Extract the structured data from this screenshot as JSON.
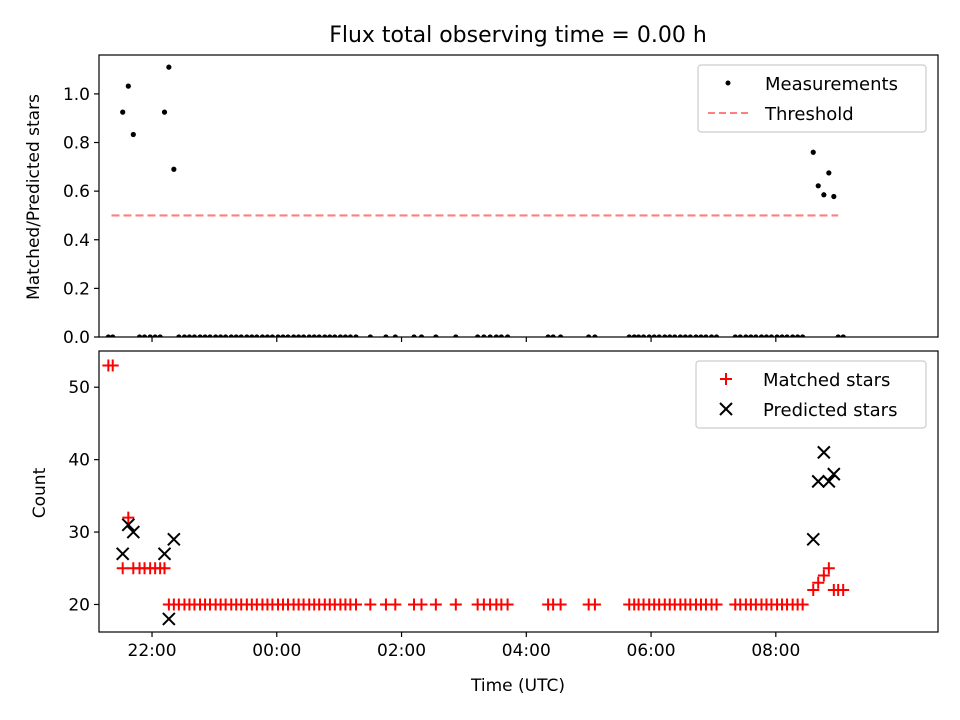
{
  "chart_data": [
    {
      "type": "scatter",
      "title": "Flux total observing time = 0.00 h",
      "xlabel": "",
      "ylabel": "Matched/Predicted stars",
      "xlim": [
        -2.85,
        10.6
      ],
      "ylim": [
        0,
        1.16
      ],
      "yticks": [
        0.0,
        0.2,
        0.4,
        0.6,
        0.8,
        1.0
      ],
      "ytick_labels": [
        "0.0",
        "0.2",
        "0.4",
        "0.6",
        "0.8",
        "1.0"
      ],
      "xticks": [
        -2,
        0,
        2,
        4,
        6,
        8
      ],
      "legend": "top-right",
      "series": [
        {
          "name": "Measurements",
          "kind": "scatter",
          "marker": "dot",
          "color": "#000000",
          "points": [
            [
              -2.7,
              0
            ],
            [
              -2.63,
              0
            ],
            [
              -2.47,
              0.925
            ],
            [
              -2.38,
              1.032
            ],
            [
              -2.3,
              0.833
            ],
            [
              -2.2,
              0
            ],
            [
              -2.12,
              0
            ],
            [
              -2.03,
              0
            ],
            [
              -1.95,
              0
            ],
            [
              -1.87,
              0
            ],
            [
              -1.8,
              0.925
            ],
            [
              -1.73,
              1.11
            ],
            [
              -1.65,
              0.69
            ],
            [
              -1.57,
              0
            ],
            [
              -1.48,
              0
            ],
            [
              -1.4,
              0
            ],
            [
              -1.32,
              0
            ],
            [
              -1.23,
              0
            ],
            [
              -1.15,
              0
            ],
            [
              -1.07,
              0
            ],
            [
              -0.98,
              0
            ],
            [
              -0.9,
              0
            ],
            [
              -0.82,
              0
            ],
            [
              -0.73,
              0
            ],
            [
              -0.65,
              0
            ],
            [
              -0.57,
              0
            ],
            [
              -0.48,
              0
            ],
            [
              -0.4,
              0
            ],
            [
              -0.32,
              0
            ],
            [
              -0.23,
              0
            ],
            [
              -0.15,
              0
            ],
            [
              -0.07,
              0
            ],
            [
              0.02,
              0
            ],
            [
              0.1,
              0
            ],
            [
              0.18,
              0
            ],
            [
              0.27,
              0
            ],
            [
              0.35,
              0
            ],
            [
              0.43,
              0
            ],
            [
              0.52,
              0
            ],
            [
              0.6,
              0
            ],
            [
              0.68,
              0
            ],
            [
              0.77,
              0
            ],
            [
              0.85,
              0
            ],
            [
              0.93,
              0
            ],
            [
              1.02,
              0
            ],
            [
              1.1,
              0
            ],
            [
              1.18,
              0
            ],
            [
              1.27,
              0
            ],
            [
              1.5,
              0
            ],
            [
              1.75,
              0
            ],
            [
              1.9,
              0
            ],
            [
              2.2,
              0
            ],
            [
              2.32,
              0
            ],
            [
              2.55,
              0
            ],
            [
              2.87,
              0
            ],
            [
              3.22,
              0
            ],
            [
              3.32,
              0
            ],
            [
              3.42,
              0
            ],
            [
              3.52,
              0
            ],
            [
              3.6,
              0
            ],
            [
              3.7,
              0
            ],
            [
              4.35,
              0
            ],
            [
              4.43,
              0
            ],
            [
              4.55,
              0
            ],
            [
              5.0,
              0
            ],
            [
              5.1,
              0
            ],
            [
              5.65,
              0
            ],
            [
              5.73,
              0
            ],
            [
              5.8,
              0
            ],
            [
              5.88,
              0
            ],
            [
              5.97,
              0
            ],
            [
              6.05,
              0
            ],
            [
              6.13,
              0
            ],
            [
              6.22,
              0
            ],
            [
              6.3,
              0
            ],
            [
              6.38,
              0
            ],
            [
              6.47,
              0
            ],
            [
              6.55,
              0
            ],
            [
              6.63,
              0
            ],
            [
              6.72,
              0
            ],
            [
              6.8,
              0
            ],
            [
              6.88,
              0
            ],
            [
              6.97,
              0
            ],
            [
              7.05,
              0
            ],
            [
              7.35,
              0
            ],
            [
              7.43,
              0
            ],
            [
              7.52,
              0
            ],
            [
              7.6,
              0
            ],
            [
              7.68,
              0
            ],
            [
              7.77,
              0
            ],
            [
              7.85,
              0
            ],
            [
              7.93,
              0
            ],
            [
              8.02,
              0
            ],
            [
              8.1,
              0
            ],
            [
              8.18,
              0
            ],
            [
              8.27,
              0
            ],
            [
              8.35,
              0
            ],
            [
              8.43,
              0
            ],
            [
              8.6,
              0.76
            ],
            [
              8.68,
              0.622
            ],
            [
              8.77,
              0.585
            ],
            [
              8.85,
              0.675
            ],
            [
              8.93,
              0.578
            ],
            [
              9.0,
              0
            ],
            [
              9.08,
              0
            ]
          ]
        },
        {
          "name": "Threshold",
          "kind": "line",
          "dashed": true,
          "color": "#ff7f7f",
          "x": [
            -2.65,
            9.0
          ],
          "y": [
            0.5,
            0.5
          ]
        }
      ]
    },
    {
      "type": "scatter",
      "title": "",
      "xlabel": "Time (UTC)",
      "ylabel": "Count",
      "xlim": [
        -2.85,
        10.6
      ],
      "ylim": [
        16.2,
        55
      ],
      "yticks": [
        20,
        30,
        40,
        50
      ],
      "ytick_labels": [
        "20",
        "30",
        "40",
        "50"
      ],
      "xticks": [
        -2,
        0,
        2,
        4,
        6,
        8
      ],
      "xtick_labels": [
        "22:00",
        "00:00",
        "02:00",
        "04:00",
        "06:00",
        "08:00"
      ],
      "legend": "top-right",
      "series": [
        {
          "name": "Matched stars",
          "kind": "scatter",
          "marker": "plus",
          "color": "#ff0000",
          "points": [
            [
              -2.7,
              53
            ],
            [
              -2.63,
              53
            ],
            [
              -2.47,
              25
            ],
            [
              -2.38,
              32
            ],
            [
              -2.3,
              25
            ],
            [
              -2.2,
              25
            ],
            [
              -2.12,
              25
            ],
            [
              -2.03,
              25
            ],
            [
              -1.95,
              25
            ],
            [
              -1.87,
              25
            ],
            [
              -1.8,
              25
            ],
            [
              -1.73,
              20
            ],
            [
              -1.65,
              20
            ],
            [
              -1.57,
              20
            ],
            [
              -1.48,
              20
            ],
            [
              -1.4,
              20
            ],
            [
              -1.32,
              20
            ],
            [
              -1.23,
              20
            ],
            [
              -1.15,
              20
            ],
            [
              -1.07,
              20
            ],
            [
              -0.98,
              20
            ],
            [
              -0.9,
              20
            ],
            [
              -0.82,
              20
            ],
            [
              -0.73,
              20
            ],
            [
              -0.65,
              20
            ],
            [
              -0.57,
              20
            ],
            [
              -0.48,
              20
            ],
            [
              -0.4,
              20
            ],
            [
              -0.32,
              20
            ],
            [
              -0.23,
              20
            ],
            [
              -0.15,
              20
            ],
            [
              -0.07,
              20
            ],
            [
              0.02,
              20
            ],
            [
              0.1,
              20
            ],
            [
              0.18,
              20
            ],
            [
              0.27,
              20
            ],
            [
              0.35,
              20
            ],
            [
              0.43,
              20
            ],
            [
              0.52,
              20
            ],
            [
              0.6,
              20
            ],
            [
              0.68,
              20
            ],
            [
              0.77,
              20
            ],
            [
              0.85,
              20
            ],
            [
              0.93,
              20
            ],
            [
              1.02,
              20
            ],
            [
              1.1,
              20
            ],
            [
              1.18,
              20
            ],
            [
              1.27,
              20
            ],
            [
              1.5,
              20
            ],
            [
              1.75,
              20
            ],
            [
              1.9,
              20
            ],
            [
              2.2,
              20
            ],
            [
              2.32,
              20
            ],
            [
              2.55,
              20
            ],
            [
              2.87,
              20
            ],
            [
              3.22,
              20
            ],
            [
              3.32,
              20
            ],
            [
              3.42,
              20
            ],
            [
              3.52,
              20
            ],
            [
              3.6,
              20
            ],
            [
              3.7,
              20
            ],
            [
              4.35,
              20
            ],
            [
              4.43,
              20
            ],
            [
              4.55,
              20
            ],
            [
              5.0,
              20
            ],
            [
              5.1,
              20
            ],
            [
              5.65,
              20
            ],
            [
              5.73,
              20
            ],
            [
              5.8,
              20
            ],
            [
              5.88,
              20
            ],
            [
              5.97,
              20
            ],
            [
              6.05,
              20
            ],
            [
              6.13,
              20
            ],
            [
              6.22,
              20
            ],
            [
              6.3,
              20
            ],
            [
              6.38,
              20
            ],
            [
              6.47,
              20
            ],
            [
              6.55,
              20
            ],
            [
              6.63,
              20
            ],
            [
              6.72,
              20
            ],
            [
              6.8,
              20
            ],
            [
              6.88,
              20
            ],
            [
              6.97,
              20
            ],
            [
              7.05,
              20
            ],
            [
              7.35,
              20
            ],
            [
              7.43,
              20
            ],
            [
              7.52,
              20
            ],
            [
              7.6,
              20
            ],
            [
              7.68,
              20
            ],
            [
              7.77,
              20
            ],
            [
              7.85,
              20
            ],
            [
              7.93,
              20
            ],
            [
              8.02,
              20
            ],
            [
              8.1,
              20
            ],
            [
              8.18,
              20
            ],
            [
              8.27,
              20
            ],
            [
              8.35,
              20
            ],
            [
              8.43,
              20
            ],
            [
              8.6,
              22
            ],
            [
              8.68,
              23
            ],
            [
              8.77,
              24
            ],
            [
              8.85,
              25
            ],
            [
              8.93,
              22
            ],
            [
              9.0,
              22
            ],
            [
              9.08,
              22
            ]
          ]
        },
        {
          "name": "Predicted stars",
          "kind": "scatter",
          "marker": "x",
          "color": "#000000",
          "points": [
            [
              -2.47,
              27
            ],
            [
              -2.38,
              31
            ],
            [
              -2.3,
              30
            ],
            [
              -1.8,
              27
            ],
            [
              -1.73,
              18
            ],
            [
              -1.65,
              29
            ],
            [
              8.6,
              29
            ],
            [
              8.68,
              37
            ],
            [
              8.77,
              41
            ],
            [
              8.85,
              37
            ],
            [
              8.93,
              38
            ]
          ]
        }
      ]
    }
  ]
}
